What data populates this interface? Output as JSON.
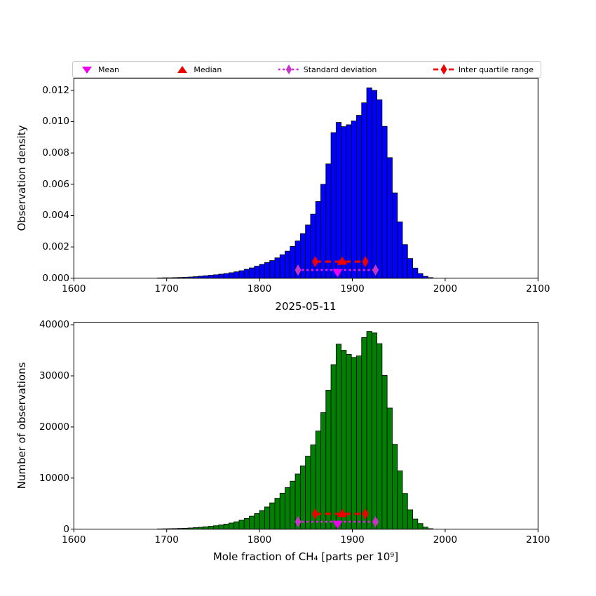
{
  "title": "2025-05-11",
  "xlabel": "Mole fraction of CH₄ [parts per 10⁹]",
  "colors": {
    "histogram_top": "#0000FF",
    "histogram_bottom": "#008000",
    "bar_edge": "#000000",
    "mean_marker": "#EE00EE",
    "std_line": "#E020E0",
    "std_marker": "#C636C6",
    "median_marker": "#EE0000",
    "iqr_line": "#EE0000"
  },
  "legend": {
    "items": [
      {
        "label": "Mean",
        "type": "triangle-down",
        "color": "#EE00EE"
      },
      {
        "label": "Median",
        "type": "triangle-up",
        "color": "#EE0000"
      },
      {
        "label": "Standard deviation",
        "type": "diamond-dotted",
        "line_color": "#E020E0",
        "color": "#C636C6"
      },
      {
        "label": "Inter quartile range",
        "type": "diamond-dashed",
        "line_color": "#EE0000",
        "color": "#EE0000"
      }
    ]
  },
  "chart_data": [
    {
      "plot": "top",
      "type": "histogram",
      "ylabel": "Observation density",
      "color": "#0000FF",
      "xlim": [
        1600,
        2100
      ],
      "ylim": [
        0,
        0.012775
      ],
      "bin_start": 1690,
      "bin_width": 5.5,
      "values": [
        2e-05,
        3e-05,
        3e-05,
        4e-05,
        5e-05,
        6e-05,
        8e-05,
        0.0001,
        0.00013,
        0.00016,
        0.00019,
        0.00022,
        0.00026,
        0.0003,
        0.00035,
        0.00041,
        0.00048,
        0.00057,
        0.00066,
        0.00077,
        0.00088,
        0.001,
        0.00113,
        0.0013,
        0.0015,
        0.00173,
        0.00203,
        0.00238,
        0.00285,
        0.0034,
        0.0041,
        0.0049,
        0.006,
        0.0073,
        0.0093,
        0.00995,
        0.00968,
        0.0098,
        0.01005,
        0.0104,
        0.0112,
        0.01216,
        0.012,
        0.0114,
        0.0097,
        0.0077,
        0.00545,
        0.0036,
        0.00215,
        0.00126,
        0.00065,
        0.0003,
        0.00012,
        4e-05
      ],
      "x_ticks": {
        "values": [
          1600,
          1700,
          1800,
          1900,
          2000,
          2100
        ],
        "labels": [
          "1600",
          "1700",
          "1800",
          "1900",
          "2000",
          "2100"
        ]
      },
      "y_ticks": {
        "values": [
          0,
          0.002,
          0.004,
          0.006,
          0.008,
          0.01,
          0.012
        ],
        "labels": [
          "0.000",
          "0.002",
          "0.004",
          "0.006",
          "0.008",
          "0.010",
          "0.012"
        ]
      },
      "markers": {
        "mean": {
          "x": 1884,
          "y": 0.00052,
          "shape": "triangle-down",
          "color": "#EE00EE"
        },
        "median": {
          "x": 1889,
          "y": 0.00106,
          "shape": "triangle-up",
          "color": "#EE0000"
        },
        "std_range": {
          "x1": 1841.5,
          "x2": 1925,
          "y": 0.00052,
          "style": "dotted",
          "line_color": "#E020E0",
          "marker_color": "#C636C6"
        },
        "iqr_range": {
          "x1": 1860,
          "x2": 1914,
          "y": 0.00106,
          "style": "dashed",
          "line_color": "#EE0000",
          "marker_color": "#EE0000"
        }
      }
    },
    {
      "plot": "bottom",
      "type": "histogram",
      "ylabel": "Number of observations",
      "color": "#008000",
      "xlim": [
        1600,
        2100
      ],
      "ylim": [
        0,
        40500
      ],
      "bin_start": 1690,
      "bin_width": 5.5,
      "values": [
        60,
        80,
        100,
        120,
        150,
        190,
        240,
        300,
        380,
        470,
        570,
        680,
        820,
        1000,
        1200,
        1450,
        1750,
        2100,
        2550,
        3050,
        3650,
        4350,
        5150,
        6050,
        7050,
        8150,
        9400,
        10800,
        12400,
        14300,
        16500,
        19200,
        22800,
        27200,
        32200,
        36200,
        35000,
        34200,
        33600,
        33900,
        37500,
        38700,
        38400,
        36300,
        30100,
        23700,
        16600,
        11400,
        7000,
        3800,
        2000,
        1100,
        400,
        100
      ],
      "x_ticks": {
        "values": [
          1600,
          1700,
          1800,
          1900,
          2000,
          2100
        ],
        "labels": [
          "1600",
          "1700",
          "1800",
          "1900",
          "2000",
          "2100"
        ]
      },
      "y_ticks": {
        "values": [
          0,
          10000,
          20000,
          30000,
          40000
        ],
        "labels": [
          "0",
          "10000",
          "20000",
          "30000",
          "40000"
        ]
      },
      "markers": {
        "mean": {
          "x": 1884,
          "y": 1450,
          "shape": "triangle-down",
          "color": "#EE00EE"
        },
        "median": {
          "x": 1889,
          "y": 3000,
          "shape": "triangle-up",
          "color": "#EE0000"
        },
        "std_range": {
          "x1": 1841.5,
          "x2": 1925,
          "y": 1450,
          "style": "dotted",
          "line_color": "#E020E0",
          "marker_color": "#C636C6"
        },
        "iqr_range": {
          "x1": 1860,
          "x2": 1914,
          "y": 3000,
          "style": "dashed",
          "line_color": "#EE0000",
          "marker_color": "#EE0000"
        }
      }
    }
  ]
}
